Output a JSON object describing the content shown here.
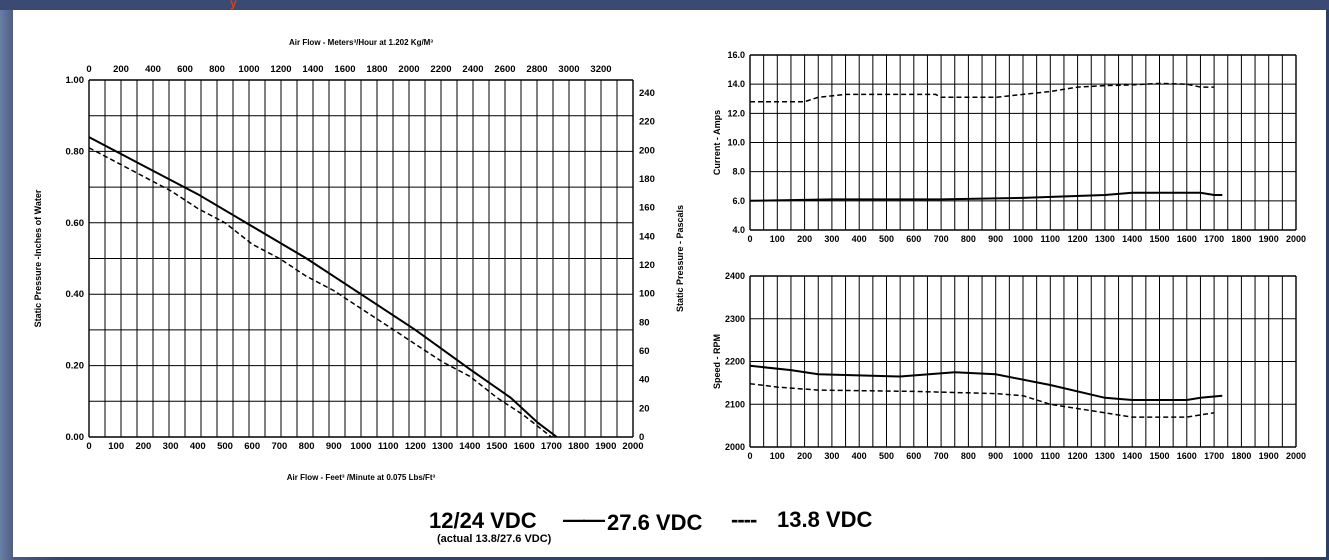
{
  "top_mark": "y",
  "chart_data": [
    {
      "type": "line",
      "title": "Air Flow - Meters³/Hour at 1.202 Kg/M³",
      "xlabel": "Air Flow - Feet³ /Minute at 0.075 Lbs/Ft³",
      "ylabel": "Static Pressure -Inches of Water",
      "y2label": "Static Pressure - Pascals",
      "xlim": [
        0,
        2000
      ],
      "ylim": [
        0,
        1.0
      ],
      "x_ticks": [
        "0",
        "100",
        "200",
        "300",
        "400",
        "500",
        "600",
        "700",
        "800",
        "900",
        "1000",
        "1100",
        "1200",
        "1300",
        "1400",
        "1500",
        "1600",
        "1700",
        "1800",
        "1900",
        "2000"
      ],
      "y_ticks": [
        "0.00",
        "0.20",
        "0.40",
        "0.60",
        "0.80",
        "1.00"
      ],
      "top_ticks": [
        "0",
        "200",
        "400",
        "600",
        "800",
        "1000",
        "1200",
        "1400",
        "1600",
        "1800",
        "2000",
        "2200",
        "2400",
        "2600",
        "2800",
        "3000",
        "3200"
      ],
      "right_ticks": [
        "0",
        "20",
        "40",
        "60",
        "80",
        "100",
        "120",
        "140",
        "160",
        "180",
        "200",
        "220",
        "240"
      ],
      "grid": true,
      "series": [
        {
          "style": "solid",
          "points": [
            [
              0,
              0.84
            ],
            [
              200,
              0.76
            ],
            [
              400,
              0.68
            ],
            [
              600,
              0.59
            ],
            [
              800,
              0.5
            ],
            [
              1000,
              0.4
            ],
            [
              1200,
              0.3
            ],
            [
              1400,
              0.19
            ],
            [
              1550,
              0.11
            ],
            [
              1650,
              0.04
            ],
            [
              1720,
              0.0
            ]
          ]
        },
        {
          "style": "dashed",
          "points": [
            [
              0,
              0.81
            ],
            [
              100,
              0.77
            ],
            [
              200,
              0.73
            ],
            [
              300,
              0.69
            ],
            [
              400,
              0.64
            ],
            [
              500,
              0.6
            ],
            [
              600,
              0.54
            ],
            [
              700,
              0.5
            ],
            [
              800,
              0.45
            ],
            [
              900,
              0.41
            ],
            [
              1000,
              0.36
            ],
            [
              1100,
              0.31
            ],
            [
              1200,
              0.26
            ],
            [
              1300,
              0.21
            ],
            [
              1400,
              0.17
            ],
            [
              1500,
              0.11
            ],
            [
              1600,
              0.06
            ],
            [
              1650,
              0.03
            ],
            [
              1700,
              0.0
            ]
          ]
        }
      ]
    },
    {
      "type": "line",
      "ylabel": "Current - Amps",
      "xlim": [
        0,
        2000
      ],
      "ylim": [
        4.0,
        16.0
      ],
      "x_ticks": [
        "0",
        "100",
        "200",
        "300",
        "400",
        "500",
        "600",
        "700",
        "800",
        "900",
        "1000",
        "1100",
        "1200",
        "1300",
        "1400",
        "1500",
        "1600",
        "1700",
        "1800",
        "1900",
        "2000"
      ],
      "y_ticks": [
        "4.0",
        "6.0",
        "8.0",
        "10.0",
        "12.0",
        "14.0",
        "16.0"
      ],
      "grid": true,
      "series": [
        {
          "style": "dashed",
          "points": [
            [
              0,
              12.8
            ],
            [
              200,
              12.8
            ],
            [
              250,
              13.1
            ],
            [
              350,
              13.3
            ],
            [
              680,
              13.3
            ],
            [
              700,
              13.1
            ],
            [
              900,
              13.1
            ],
            [
              1000,
              13.3
            ],
            [
              1100,
              13.5
            ],
            [
              1200,
              13.8
            ],
            [
              1300,
              13.9
            ],
            [
              1400,
              13.95
            ],
            [
              1500,
              14.05
            ],
            [
              1600,
              14.0
            ],
            [
              1650,
              13.8
            ],
            [
              1700,
              13.8
            ]
          ]
        },
        {
          "style": "solid",
          "points": [
            [
              0,
              6.0
            ],
            [
              300,
              6.1
            ],
            [
              700,
              6.1
            ],
            [
              1000,
              6.2
            ],
            [
              1300,
              6.4
            ],
            [
              1400,
              6.55
            ],
            [
              1650,
              6.55
            ],
            [
              1700,
              6.4
            ],
            [
              1730,
              6.4
            ]
          ]
        }
      ]
    },
    {
      "type": "line",
      "ylabel": "Speed - RPM",
      "xlim": [
        0,
        2000
      ],
      "ylim": [
        2000,
        2400
      ],
      "x_ticks": [
        "0",
        "100",
        "200",
        "300",
        "400",
        "500",
        "600",
        "700",
        "800",
        "900",
        "1000",
        "1100",
        "1200",
        "1300",
        "1400",
        "1500",
        "1600",
        "1700",
        "1800",
        "1900",
        "2000"
      ],
      "y_ticks": [
        "2000",
        "2100",
        "2200",
        "2300",
        "2400"
      ],
      "grid": true,
      "series": [
        {
          "style": "solid",
          "points": [
            [
              0,
              2190
            ],
            [
              150,
              2180
            ],
            [
              250,
              2170
            ],
            [
              550,
              2165
            ],
            [
              750,
              2175
            ],
            [
              900,
              2170
            ],
            [
              1100,
              2145
            ],
            [
              1300,
              2115
            ],
            [
              1400,
              2110
            ],
            [
              1600,
              2110
            ],
            [
              1650,
              2115
            ],
            [
              1730,
              2120
            ]
          ]
        },
        {
          "style": "dashed",
          "points": [
            [
              0,
              2148
            ],
            [
              100,
              2140
            ],
            [
              250,
              2133
            ],
            [
              600,
              2130
            ],
            [
              900,
              2125
            ],
            [
              1000,
              2120
            ],
            [
              1100,
              2100
            ],
            [
              1250,
              2085
            ],
            [
              1400,
              2070
            ],
            [
              1600,
              2070
            ],
            [
              1700,
              2080
            ]
          ]
        }
      ]
    }
  ],
  "legend": {
    "label": "12/24 VDC",
    "sublabel": "(actual 13.8/27.6 VDC)",
    "solid_marker": "——",
    "solid_label": "27.6 VDC",
    "dashed_marker": "----",
    "dashed_label": "13.8 VDC"
  }
}
